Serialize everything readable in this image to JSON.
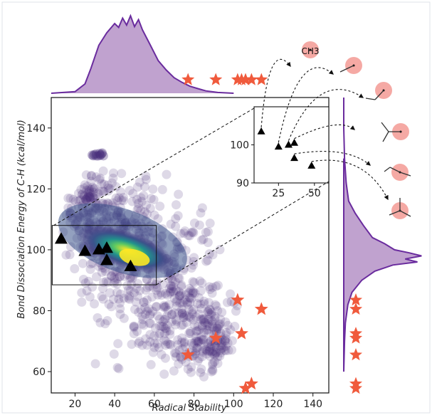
{
  "chart_data": {
    "type": "scatter",
    "title": "",
    "xlabel": "Radical Stability",
    "ylabel": "Bond Dissociation Energy of C-H  (kcal/mol)",
    "xlim": [
      8,
      148
    ],
    "ylim": [
      53,
      150
    ],
    "xticks": [
      20,
      40,
      60,
      80,
      100,
      120,
      140
    ],
    "yticks": [
      60,
      80,
      100,
      120,
      140
    ],
    "grid": false,
    "colors": {
      "density_low": "#472d7b",
      "density_mid": "#21918c",
      "density_high": "#fde725",
      "triangles": "#000000",
      "stars": "#f05a3c",
      "marginal_fill": "#b592c7",
      "marginal_line": "#6a2c9e",
      "molecule_circle": "#f5a9a4"
    },
    "series": [
      {
        "marker": "triangle",
        "points": [
          [
            13,
            103.5
          ],
          [
            25,
            99.5
          ],
          [
            32,
            100
          ],
          [
            36,
            100.5
          ],
          [
            36,
            96.5
          ],
          [
            48,
            94.5
          ]
        ]
      },
      {
        "marker": "star",
        "points": [
          [
            77,
            65.5
          ],
          [
            91,
            71
          ],
          [
            102,
            83.5
          ],
          [
            104,
            72.5
          ],
          [
            106,
            54.5
          ],
          [
            109,
            56
          ],
          [
            114,
            80.5
          ]
        ]
      }
    ],
    "density_cloud": {
      "x_range": [
        15,
        100
      ],
      "y_range": [
        60,
        132
      ],
      "peak": [
        50,
        98
      ]
    },
    "inset": {
      "xlim": [
        8,
        60
      ],
      "ylim": [
        90,
        110
      ],
      "xticks": [
        25,
        50
      ],
      "yticks": [
        90,
        100
      ],
      "points": [
        [
          13,
          103.5
        ],
        [
          25,
          99.5
        ],
        [
          32,
          100
        ],
        [
          36,
          100.5
        ],
        [
          36,
          96.5
        ],
        [
          48,
          94.5
        ]
      ]
    },
    "top_marginal": {
      "star_positions": [
        77,
        91,
        102,
        104,
        106,
        109,
        114
      ]
    },
    "right_marginal": {
      "star_positions": [
        65.5,
        71,
        72.5,
        80.5,
        83.5,
        54.5,
        56
      ]
    },
    "molecule_labels": [
      "CH3"
    ]
  }
}
